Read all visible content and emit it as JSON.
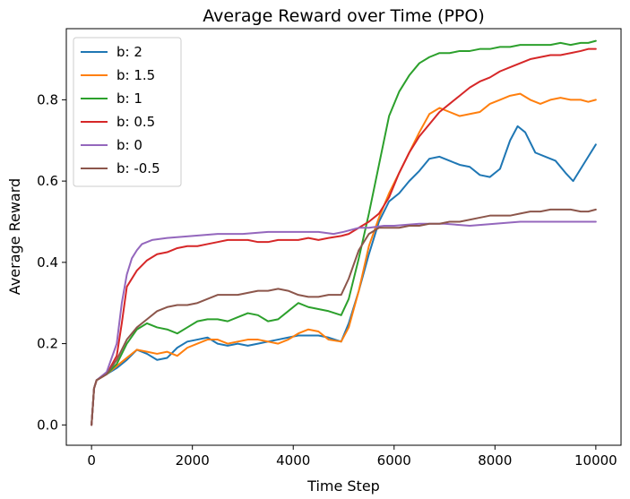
{
  "chart_data": {
    "type": "line",
    "title": "Average Reward over Time (PPO)",
    "xlabel": "Time Step",
    "ylabel": "Average Reward",
    "xlim": [
      -500,
      10500
    ],
    "ylim": [
      -0.05,
      0.975
    ],
    "xticks": [
      0,
      2000,
      4000,
      6000,
      8000,
      10000
    ],
    "xtick_labels": [
      "0",
      "2000",
      "4000",
      "6000",
      "8000",
      "10000"
    ],
    "yticks": [
      0.0,
      0.2,
      0.4,
      0.6,
      0.8
    ],
    "ytick_labels": [
      "0.0",
      "0.2",
      "0.4",
      "0.6",
      "0.8"
    ],
    "grid": false,
    "legend_position": "upper left",
    "series": [
      {
        "name": "b: 2",
        "color": "#1f77b4",
        "x": [
          0,
          50,
          100,
          300,
          500,
          700,
          900,
          1100,
          1300,
          1500,
          1700,
          1900,
          2100,
          2300,
          2500,
          2700,
          2900,
          3100,
          3300,
          3500,
          3700,
          3900,
          4100,
          4300,
          4500,
          4700,
          4950,
          5100,
          5300,
          5500,
          5700,
          5900,
          6100,
          6300,
          6500,
          6700,
          6900,
          7100,
          7300,
          7500,
          7700,
          7900,
          8100,
          8300,
          8450,
          8600,
          8800,
          9000,
          9200,
          9400,
          9550,
          9700,
          9850,
          10000
        ],
        "y": [
          0.0,
          0.09,
          0.11,
          0.125,
          0.14,
          0.16,
          0.185,
          0.175,
          0.16,
          0.165,
          0.19,
          0.205,
          0.21,
          0.215,
          0.2,
          0.195,
          0.2,
          0.195,
          0.2,
          0.205,
          0.21,
          0.215,
          0.22,
          0.22,
          0.22,
          0.215,
          0.205,
          0.25,
          0.33,
          0.42,
          0.5,
          0.55,
          0.57,
          0.6,
          0.625,
          0.655,
          0.66,
          0.65,
          0.64,
          0.635,
          0.615,
          0.61,
          0.63,
          0.7,
          0.735,
          0.72,
          0.67,
          0.66,
          0.65,
          0.62,
          0.6,
          0.63,
          0.66,
          0.69
        ]
      },
      {
        "name": "b: 1.5",
        "color": "#ff7f0e",
        "x": [
          0,
          50,
          100,
          300,
          500,
          700,
          900,
          1100,
          1300,
          1500,
          1700,
          1900,
          2100,
          2300,
          2500,
          2700,
          2900,
          3100,
          3300,
          3500,
          3700,
          3900,
          4100,
          4300,
          4500,
          4700,
          4950,
          5100,
          5300,
          5500,
          5700,
          5900,
          6100,
          6300,
          6500,
          6700,
          6900,
          7100,
          7300,
          7500,
          7700,
          7900,
          8100,
          8300,
          8500,
          8700,
          8900,
          9100,
          9300,
          9500,
          9700,
          9850,
          10000
        ],
        "y": [
          0.0,
          0.09,
          0.11,
          0.125,
          0.145,
          0.165,
          0.185,
          0.18,
          0.175,
          0.18,
          0.17,
          0.19,
          0.2,
          0.21,
          0.21,
          0.2,
          0.205,
          0.21,
          0.21,
          0.205,
          0.2,
          0.21,
          0.225,
          0.235,
          0.23,
          0.21,
          0.205,
          0.24,
          0.33,
          0.44,
          0.51,
          0.57,
          0.62,
          0.67,
          0.72,
          0.765,
          0.78,
          0.77,
          0.76,
          0.765,
          0.77,
          0.79,
          0.8,
          0.81,
          0.815,
          0.8,
          0.79,
          0.8,
          0.805,
          0.8,
          0.8,
          0.795,
          0.8
        ]
      },
      {
        "name": "b: 1",
        "color": "#2ca02c",
        "x": [
          0,
          50,
          100,
          300,
          500,
          700,
          900,
          1100,
          1300,
          1500,
          1700,
          1900,
          2100,
          2300,
          2500,
          2700,
          2900,
          3100,
          3300,
          3500,
          3700,
          3900,
          4100,
          4300,
          4500,
          4700,
          4950,
          5100,
          5300,
          5500,
          5700,
          5900,
          6100,
          6300,
          6500,
          6700,
          6900,
          7100,
          7300,
          7500,
          7700,
          7900,
          8100,
          8300,
          8500,
          8700,
          8900,
          9100,
          9300,
          9500,
          9700,
          9850,
          10000
        ],
        "y": [
          0.0,
          0.09,
          0.11,
          0.125,
          0.15,
          0.2,
          0.235,
          0.25,
          0.24,
          0.235,
          0.225,
          0.24,
          0.255,
          0.26,
          0.26,
          0.255,
          0.265,
          0.275,
          0.27,
          0.255,
          0.26,
          0.28,
          0.3,
          0.29,
          0.285,
          0.28,
          0.27,
          0.31,
          0.41,
          0.52,
          0.64,
          0.76,
          0.82,
          0.86,
          0.89,
          0.905,
          0.915,
          0.915,
          0.92,
          0.92,
          0.925,
          0.925,
          0.93,
          0.93,
          0.935,
          0.935,
          0.935,
          0.935,
          0.94,
          0.935,
          0.94,
          0.94,
          0.945
        ]
      },
      {
        "name": "b: 0.5",
        "color": "#d62728",
        "x": [
          0,
          50,
          100,
          300,
          500,
          600,
          700,
          900,
          1100,
          1300,
          1500,
          1700,
          1900,
          2100,
          2300,
          2500,
          2700,
          2900,
          3100,
          3300,
          3500,
          3700,
          3900,
          4100,
          4300,
          4500,
          4700,
          4950,
          5100,
          5300,
          5500,
          5700,
          5900,
          6100,
          6300,
          6500,
          6700,
          6900,
          7100,
          7300,
          7500,
          7700,
          7900,
          8100,
          8300,
          8500,
          8700,
          8900,
          9100,
          9300,
          9500,
          9700,
          9850,
          10000
        ],
        "y": [
          0.0,
          0.09,
          0.11,
          0.125,
          0.17,
          0.25,
          0.34,
          0.38,
          0.405,
          0.42,
          0.425,
          0.435,
          0.44,
          0.44,
          0.445,
          0.45,
          0.455,
          0.455,
          0.455,
          0.45,
          0.45,
          0.455,
          0.455,
          0.455,
          0.46,
          0.455,
          0.46,
          0.465,
          0.47,
          0.485,
          0.5,
          0.52,
          0.56,
          0.62,
          0.67,
          0.71,
          0.74,
          0.77,
          0.79,
          0.81,
          0.83,
          0.845,
          0.855,
          0.87,
          0.88,
          0.89,
          0.9,
          0.905,
          0.91,
          0.91,
          0.915,
          0.92,
          0.925,
          0.925
        ]
      },
      {
        "name": "b: 0",
        "color": "#9467bd",
        "x": [
          0,
          50,
          100,
          300,
          500,
          600,
          700,
          800,
          900,
          1000,
          1200,
          1500,
          2000,
          2500,
          3000,
          3500,
          4000,
          4500,
          4800,
          5000,
          5300,
          5500,
          5800,
          6000,
          6500,
          7000,
          7500,
          8000,
          8500,
          9000,
          9500,
          10000
        ],
        "y": [
          0.0,
          0.09,
          0.11,
          0.13,
          0.2,
          0.3,
          0.37,
          0.41,
          0.43,
          0.445,
          0.455,
          0.46,
          0.465,
          0.47,
          0.47,
          0.475,
          0.475,
          0.475,
          0.47,
          0.475,
          0.485,
          0.485,
          0.49,
          0.49,
          0.495,
          0.495,
          0.49,
          0.495,
          0.5,
          0.5,
          0.5,
          0.5
        ]
      },
      {
        "name": "b: -0.5",
        "color": "#8c564b",
        "x": [
          0,
          50,
          100,
          300,
          500,
          700,
          900,
          1100,
          1300,
          1500,
          1700,
          1900,
          2100,
          2300,
          2500,
          2700,
          2900,
          3100,
          3300,
          3500,
          3700,
          3900,
          4100,
          4300,
          4500,
          4700,
          4950,
          5100,
          5300,
          5500,
          5700,
          5900,
          6100,
          6300,
          6500,
          6700,
          6900,
          7100,
          7300,
          7500,
          7700,
          7900,
          8100,
          8300,
          8500,
          8700,
          8900,
          9100,
          9300,
          9500,
          9700,
          9850,
          10000
        ],
        "y": [
          0.0,
          0.09,
          0.11,
          0.125,
          0.16,
          0.21,
          0.24,
          0.26,
          0.28,
          0.29,
          0.295,
          0.295,
          0.3,
          0.31,
          0.32,
          0.32,
          0.32,
          0.325,
          0.33,
          0.33,
          0.335,
          0.33,
          0.32,
          0.315,
          0.315,
          0.32,
          0.32,
          0.36,
          0.43,
          0.47,
          0.485,
          0.485,
          0.485,
          0.49,
          0.49,
          0.495,
          0.495,
          0.5,
          0.5,
          0.505,
          0.51,
          0.515,
          0.515,
          0.515,
          0.52,
          0.525,
          0.525,
          0.53,
          0.53,
          0.53,
          0.525,
          0.525,
          0.53
        ]
      }
    ]
  }
}
